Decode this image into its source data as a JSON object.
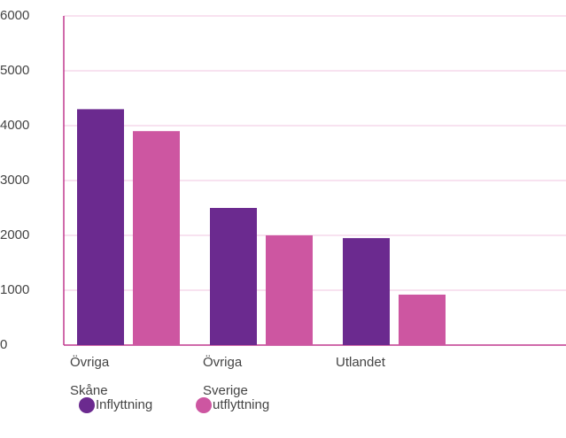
{
  "chart_data": {
    "type": "bar",
    "categories": [
      "Övriga Skåne",
      "Övriga Sverige",
      "Utlandet",
      null
    ],
    "series": [
      {
        "name": "Inflyttning",
        "color": "#6b2a8f",
        "values": [
          4300,
          2500,
          1950,
          null
        ]
      },
      {
        "name": "utflyttning",
        "color": "#cd56a1",
        "values": [
          3900,
          2000,
          920,
          null
        ]
      }
    ],
    "ylim": [
      0,
      6000
    ],
    "yticks": [
      0,
      1000,
      2000,
      3000,
      4000,
      5000,
      6000
    ],
    "grid": true,
    "legend": "bottom"
  }
}
